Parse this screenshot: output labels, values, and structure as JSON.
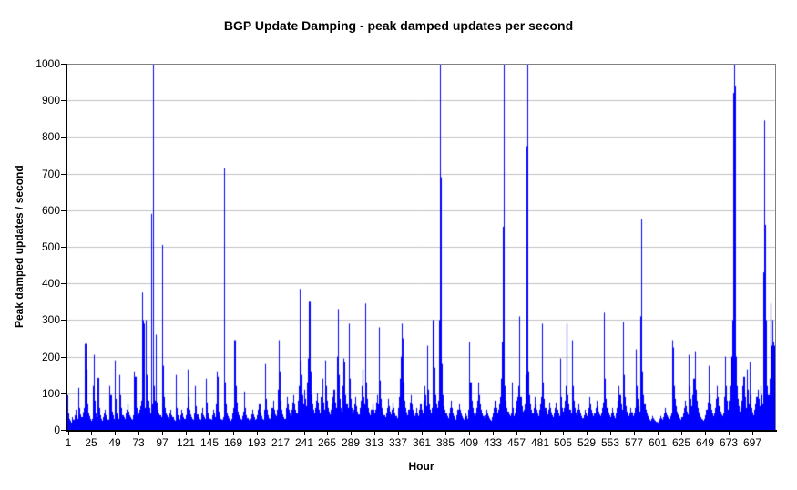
{
  "chart_data": {
    "type": "bar",
    "title": "BGP Update Damping - peak damped updates per second",
    "xlabel": "Hour",
    "ylabel": "Peak damped updates / second",
    "xlim": [
      1,
      720
    ],
    "ylim": [
      0,
      1000
    ],
    "x_start": 1,
    "x_ticks": [
      1,
      25,
      49,
      73,
      97,
      121,
      145,
      169,
      193,
      217,
      241,
      265,
      289,
      313,
      337,
      361,
      385,
      409,
      433,
      457,
      481,
      505,
      529,
      553,
      577,
      601,
      625,
      649,
      673,
      697
    ],
    "y_ticks": [
      0,
      100,
      200,
      300,
      400,
      500,
      600,
      700,
      800,
      900,
      1000
    ],
    "y_tick_step": 100,
    "grid": "horizontal",
    "legend": "none",
    "bar_color": "#0000ff",
    "grid_color": "#c0c0c0",
    "frame_color": "#808080",
    "axis_color": "#000000",
    "background_color": "#ffffff",
    "values": [
      95,
      45,
      30,
      25,
      20,
      35,
      28,
      40,
      55,
      38,
      30,
      115,
      60,
      42,
      35,
      35,
      48,
      60,
      235,
      165,
      70,
      45,
      38,
      30,
      25,
      30,
      120,
      205,
      80,
      45,
      35,
      142,
      60,
      40,
      30,
      25,
      35,
      45,
      55,
      40,
      32,
      28,
      28,
      120,
      95,
      50,
      40,
      30,
      190,
      85,
      45,
      38,
      30,
      150,
      95,
      60,
      40,
      35,
      30,
      45,
      55,
      70,
      50,
      40,
      35,
      30,
      28,
      40,
      160,
      145,
      60,
      40,
      45,
      55,
      65,
      80,
      375,
      300,
      290,
      60,
      300,
      150,
      80,
      60,
      45,
      590,
      70,
      1000,
      120,
      80,
      260,
      75,
      55,
      45,
      40,
      35,
      505,
      175,
      90,
      60,
      45,
      40,
      35,
      30,
      45,
      55,
      40,
      35,
      28,
      25,
      150,
      60,
      40,
      32,
      28,
      40,
      55,
      45,
      35,
      30,
      40,
      60,
      165,
      90,
      55,
      42,
      35,
      30,
      28,
      45,
      120,
      65,
      42,
      35,
      30,
      28,
      45,
      60,
      40,
      35,
      30,
      140,
      75,
      45,
      35,
      30,
      28,
      40,
      55,
      45,
      35,
      70,
      160,
      145,
      50,
      38,
      30,
      28,
      35,
      715,
      130,
      70,
      45,
      38,
      32,
      28,
      25,
      30,
      45,
      60,
      245,
      120,
      75,
      50,
      40,
      35,
      30,
      28,
      38,
      50,
      105,
      60,
      40,
      32,
      28,
      25,
      30,
      42,
      55,
      42,
      35,
      28,
      30,
      40,
      55,
      70,
      48,
      38,
      30,
      28,
      55,
      180,
      85,
      55,
      40,
      32,
      30,
      42,
      60,
      80,
      55,
      42,
      38,
      55,
      110,
      245,
      160,
      80,
      55,
      42,
      35,
      30,
      60,
      90,
      70,
      55,
      45,
      38,
      55,
      75,
      95,
      70,
      55,
      45,
      80,
      120,
      385,
      190,
      150,
      95,
      70,
      110,
      85,
      65,
      130,
      195,
      350,
      160,
      95,
      70,
      55,
      45,
      60,
      80,
      100,
      75,
      55,
      45,
      90,
      140,
      75,
      55,
      190,
      120,
      80,
      60,
      50,
      42,
      55,
      70,
      90,
      110,
      75,
      60,
      200,
      330,
      150,
      85,
      60,
      50,
      120,
      195,
      185,
      95,
      70,
      60,
      290,
      140,
      85,
      60,
      45,
      55,
      70,
      90,
      65,
      50,
      42,
      60,
      80,
      120,
      165,
      90,
      70,
      345,
      130,
      85,
      60,
      48,
      40,
      55,
      70,
      55,
      45,
      55,
      75,
      95,
      70,
      280,
      135,
      85,
      60,
      48,
      40,
      35,
      45,
      60,
      85,
      65,
      50,
      42,
      55,
      75,
      60,
      45,
      38,
      32,
      60,
      90,
      140,
      200,
      290,
      250,
      130,
      80,
      60,
      48,
      40,
      55,
      75,
      95,
      70,
      55,
      45,
      38,
      45,
      60,
      45,
      38,
      55,
      70,
      55,
      45,
      80,
      120,
      95,
      65,
      230,
      110,
      70,
      55,
      45,
      60,
      300,
      170,
      95,
      70,
      60,
      80,
      300,
      1000,
      690,
      180,
      95,
      65,
      55,
      45,
      38,
      32,
      45,
      60,
      80,
      60,
      45,
      38,
      32,
      28,
      40,
      55,
      70,
      55,
      45,
      38,
      32,
      28,
      35,
      45,
      38,
      30,
      55,
      240,
      130,
      80,
      60,
      45,
      38,
      45,
      60,
      80,
      130,
      95,
      70,
      55,
      45,
      38,
      32,
      40,
      55,
      45,
      38,
      32,
      28,
      25,
      35,
      45,
      60,
      80,
      60,
      45,
      55,
      70,
      90,
      140,
      240,
      555,
      1000,
      120,
      80,
      60,
      50,
      42,
      38,
      45,
      130,
      60,
      38,
      45,
      60,
      80,
      90,
      120,
      310,
      90,
      65,
      50,
      55,
      70,
      150,
      775,
      1000,
      160,
      95,
      70,
      55,
      45,
      60,
      90,
      70,
      55,
      45,
      38,
      55,
      70,
      90,
      290,
      130,
      85,
      60,
      50,
      42,
      55,
      75,
      60,
      48,
      40,
      35,
      45,
      60,
      75,
      55,
      45,
      38,
      195,
      90,
      60,
      50,
      60,
      80,
      120,
      290,
      95,
      70,
      55,
      45,
      245,
      120,
      80,
      60,
      48,
      40,
      55,
      70,
      55,
      45,
      38,
      32,
      40,
      55,
      45,
      38,
      45,
      60,
      90,
      70,
      55,
      45,
      38,
      45,
      60,
      80,
      65,
      50,
      42,
      38,
      45,
      60,
      75,
      320,
      140,
      85,
      60,
      48,
      40,
      35,
      45,
      60,
      48,
      38,
      32,
      45,
      60,
      80,
      120,
      95,
      70,
      55,
      295,
      150,
      90,
      65,
      50,
      42,
      38,
      45,
      60,
      48,
      38,
      45,
      60,
      220,
      120,
      85,
      65,
      50,
      310,
      575,
      160,
      95,
      70,
      55,
      45,
      38,
      32,
      28,
      25,
      30,
      38,
      32,
      28,
      25,
      22,
      20,
      25,
      30,
      38,
      32,
      28,
      35,
      45,
      60,
      48,
      40,
      35,
      30,
      38,
      45,
      245,
      225,
      120,
      85,
      65,
      50,
      42,
      38,
      32,
      28,
      35,
      45,
      60,
      80,
      65,
      50,
      42,
      205,
      120,
      85,
      65,
      95,
      140,
      215,
      110,
      80,
      60,
      48,
      40,
      35,
      30,
      28,
      25,
      30,
      40,
      55,
      75,
      175,
      95,
      70,
      55,
      45,
      38,
      45,
      60,
      85,
      120,
      90,
      65,
      50,
      42,
      38,
      45,
      90,
      200,
      120,
      80,
      55,
      80,
      120,
      200,
      300,
      920,
      1000,
      940,
      200,
      120,
      85,
      65,
      50,
      60,
      80,
      120,
      145,
      90,
      60,
      165,
      110,
      70,
      185,
      95,
      60,
      48,
      40,
      55,
      70,
      90,
      110,
      85,
      65,
      120,
      95,
      70,
      430,
      845,
      560,
      300,
      120,
      95,
      140,
      345,
      230,
      300,
      240,
      230
    ]
  }
}
